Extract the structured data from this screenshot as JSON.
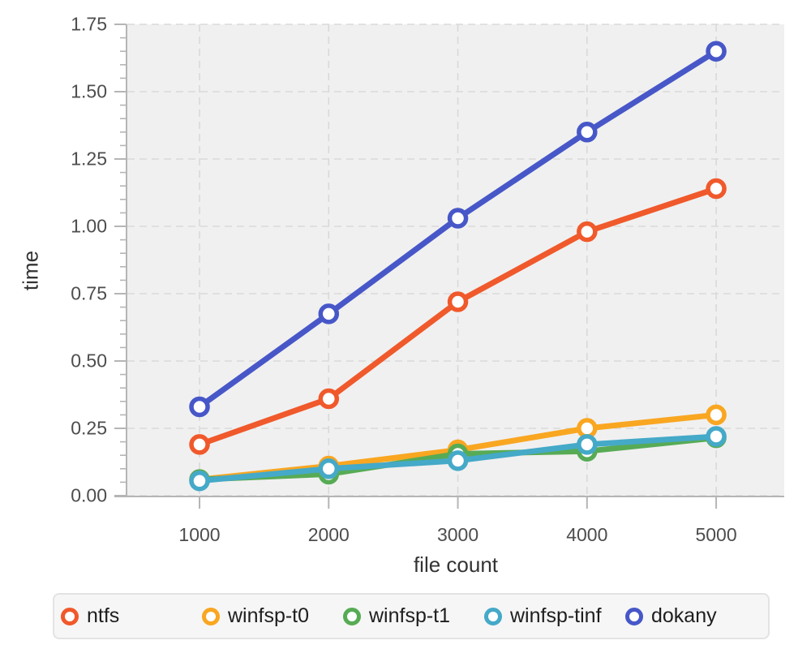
{
  "chart_data": {
    "type": "line",
    "title": "",
    "xlabel": "file count",
    "ylabel": "time",
    "x": [
      1000,
      2000,
      3000,
      4000,
      5000
    ],
    "series": [
      {
        "name": "ntfs",
        "color": "#f0592b",
        "values": [
          0.19,
          0.36,
          0.72,
          0.98,
          1.14
        ]
      },
      {
        "name": "winfsp-t0",
        "color": "#f9a621",
        "values": [
          0.06,
          0.11,
          0.17,
          0.25,
          0.3
        ]
      },
      {
        "name": "winfsp-t1",
        "color": "#57ab55",
        "values": [
          0.06,
          0.08,
          0.155,
          0.165,
          0.215
        ]
      },
      {
        "name": "winfsp-tinf",
        "color": "#45a9c8",
        "values": [
          0.055,
          0.1,
          0.13,
          0.19,
          0.22
        ]
      },
      {
        "name": "dokany",
        "color": "#4757c8",
        "values": [
          0.33,
          0.675,
          1.03,
          1.35,
          1.65
        ]
      }
    ],
    "xlim": [
      441,
      5527
    ],
    "ylim": [
      0,
      1.75
    ],
    "x_ticks": [
      1000,
      2000,
      3000,
      4000,
      5000
    ],
    "x_tick_labels": [
      "1000",
      "2000",
      "3000",
      "4000",
      "5000"
    ],
    "y_ticks": [
      0,
      0.25,
      0.5,
      0.75,
      1.0,
      1.25,
      1.5,
      1.75
    ],
    "y_tick_labels": [
      "0.00",
      "0.25",
      "0.50",
      "0.75",
      "1.00",
      "1.25",
      "1.50",
      "1.75"
    ],
    "y_minor_step": 0.05,
    "grid": true,
    "legend_position": "bottom",
    "legend_entries": [
      "ntfs",
      "winfsp-t0",
      "winfsp-t1",
      "winfsp-tinf",
      "dokany"
    ]
  },
  "style_colors": {
    "plot_background": "#f0f0f0",
    "grid_line": "#d9d9d9",
    "axis_line": "#b5b5b5",
    "tick_text": "#4d4d4d",
    "axis_title_text": "#333333",
    "legend_background": "#f6f6f6",
    "legend_border": "#e3e3e3",
    "marker_fill": "#ffffff"
  }
}
